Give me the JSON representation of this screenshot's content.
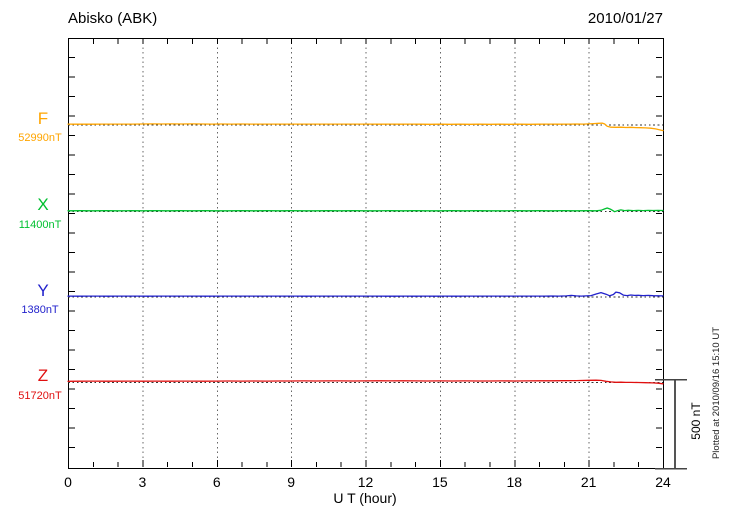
{
  "header": {
    "title": "Abisko (ABK)",
    "date": "2010/01/27"
  },
  "chart_data": {
    "type": "line",
    "title": "Abisko (ABK)",
    "date_label": "2010/01/27",
    "xlabel": "U T (hour)",
    "x_range": [
      0,
      24
    ],
    "x_major_ticks": [
      0,
      3,
      6,
      9,
      12,
      15,
      18,
      21,
      24
    ],
    "x_minor_step_hours": 1,
    "grid": "dotted vertical gridlines every 3 hours; dotted horizontal baseline for each channel",
    "legend_position": "left margin channel labels",
    "scale_bar": {
      "label": "500 nT",
      "value_nT": 500
    },
    "watermark": "Plotted at 2010/09/16 15:10 UT",
    "units_note": "series points are [hour UT, offset in nT from channel baseline]",
    "series": [
      {
        "name": "F",
        "baseline_label": "52990nT",
        "color": "#FFA500",
        "points": [
          [
            0,
            2
          ],
          [
            0.3,
            1.5
          ],
          [
            0.6,
            2
          ],
          [
            1,
            1.5
          ],
          [
            1.4,
            2
          ],
          [
            1.8,
            2.5
          ],
          [
            2.2,
            2
          ],
          [
            2.6,
            2.5
          ],
          [
            3,
            3
          ],
          [
            3.4,
            3.5
          ],
          [
            3.8,
            3
          ],
          [
            4.2,
            3.5
          ],
          [
            4.6,
            3
          ],
          [
            5,
            3.5
          ],
          [
            5.4,
            3
          ],
          [
            5.8,
            2.5
          ],
          [
            6.2,
            3
          ],
          [
            6.6,
            2.5
          ],
          [
            7,
            3
          ],
          [
            7.4,
            2.5
          ],
          [
            7.8,
            2
          ],
          [
            8.2,
            2.5
          ],
          [
            8.6,
            2
          ],
          [
            9,
            2.5
          ],
          [
            9.4,
            2
          ],
          [
            9.8,
            2.5
          ],
          [
            10.2,
            2
          ],
          [
            10.6,
            2.5
          ],
          [
            11,
            2
          ],
          [
            11.4,
            2.5
          ],
          [
            11.8,
            2
          ],
          [
            12.2,
            2
          ],
          [
            12.6,
            1.5
          ],
          [
            13,
            2
          ],
          [
            13.4,
            1.5
          ],
          [
            13.8,
            2
          ],
          [
            14.2,
            1.5
          ],
          [
            14.6,
            1
          ],
          [
            15,
            1.5
          ],
          [
            15.4,
            1
          ],
          [
            15.8,
            1.5
          ],
          [
            16.2,
            1
          ],
          [
            16.6,
            1.5
          ],
          [
            17,
            1
          ],
          [
            17.4,
            1.5
          ],
          [
            17.8,
            1
          ],
          [
            18.2,
            1.5
          ],
          [
            18.6,
            1
          ],
          [
            19,
            1.5
          ],
          [
            19.4,
            2
          ],
          [
            19.8,
            1.5
          ],
          [
            20.2,
            2
          ],
          [
            20.5,
            3
          ],
          [
            20.8,
            2.5
          ],
          [
            21,
            3.5
          ],
          [
            21.2,
            5
          ],
          [
            21.4,
            7
          ],
          [
            21.55,
            8
          ],
          [
            21.65,
            3
          ],
          [
            21.75,
            -10
          ],
          [
            21.9,
            -15
          ],
          [
            22.1,
            -16
          ],
          [
            22.3,
            -15
          ],
          [
            22.5,
            -17
          ],
          [
            22.7,
            -16
          ],
          [
            22.9,
            -17.5
          ],
          [
            23.1,
            -18
          ],
          [
            23.3,
            -19
          ],
          [
            23.5,
            -21
          ],
          [
            23.7,
            -25
          ],
          [
            23.85,
            -29
          ],
          [
            24,
            -34
          ]
        ]
      },
      {
        "name": "X",
        "baseline_label": "11400nT",
        "color": "#00C030",
        "points": [
          [
            0,
            1
          ],
          [
            0.5,
            1.5
          ],
          [
            1,
            1
          ],
          [
            1.5,
            1.5
          ],
          [
            2,
            1
          ],
          [
            2.5,
            1.5
          ],
          [
            3,
            1
          ],
          [
            3.5,
            1.5
          ],
          [
            4,
            1
          ],
          [
            4.5,
            1.5
          ],
          [
            5,
            1
          ],
          [
            5.5,
            1.5
          ],
          [
            6,
            1
          ],
          [
            6.5,
            1
          ],
          [
            7,
            1.5
          ],
          [
            7.5,
            1
          ],
          [
            8,
            1.5
          ],
          [
            8.5,
            1
          ],
          [
            9,
            1.5
          ],
          [
            9.5,
            1
          ],
          [
            10,
            1
          ],
          [
            10.5,
            1.5
          ],
          [
            11,
            1
          ],
          [
            11.5,
            1.5
          ],
          [
            12,
            1
          ],
          [
            12.5,
            1
          ],
          [
            13,
            1.5
          ],
          [
            13.5,
            1
          ],
          [
            14,
            1.5
          ],
          [
            14.5,
            1
          ],
          [
            15,
            1
          ],
          [
            15.5,
            1.5
          ],
          [
            16,
            1
          ],
          [
            16.5,
            1.5
          ],
          [
            17,
            1
          ],
          [
            17.5,
            1
          ],
          [
            18,
            1.5
          ],
          [
            18.5,
            1
          ],
          [
            19,
            1.5
          ],
          [
            19.5,
            1
          ],
          [
            20,
            1.5
          ],
          [
            20.5,
            1
          ],
          [
            21,
            1.5
          ],
          [
            21.3,
            1
          ],
          [
            21.5,
            4
          ],
          [
            21.65,
            12
          ],
          [
            21.75,
            17
          ],
          [
            21.9,
            9
          ],
          [
            22.05,
            -4
          ],
          [
            22.15,
            1
          ],
          [
            22.3,
            6
          ],
          [
            22.45,
            2
          ],
          [
            22.6,
            4
          ],
          [
            22.8,
            2.5
          ],
          [
            23,
            3.5
          ],
          [
            23.2,
            2.5
          ],
          [
            23.4,
            3.5
          ],
          [
            23.6,
            3
          ],
          [
            23.8,
            3.5
          ],
          [
            24,
            3
          ]
        ]
      },
      {
        "name": "Y",
        "baseline_label": "1380nT",
        "color": "#2222CC",
        "points": [
          [
            0,
            2
          ],
          [
            0.4,
            1.5
          ],
          [
            0.8,
            2.5
          ],
          [
            1.2,
            2
          ],
          [
            1.6,
            1.5
          ],
          [
            2,
            2
          ],
          [
            2.4,
            2.5
          ],
          [
            2.8,
            2
          ],
          [
            3.2,
            1.5
          ],
          [
            3.6,
            2
          ],
          [
            4,
            2.5
          ],
          [
            4.4,
            2
          ],
          [
            4.8,
            2.5
          ],
          [
            5.2,
            2
          ],
          [
            5.6,
            1.5
          ],
          [
            6,
            2
          ],
          [
            6.4,
            2.5
          ],
          [
            6.8,
            2
          ],
          [
            7.2,
            2.5
          ],
          [
            7.6,
            2
          ],
          [
            8,
            2.5
          ],
          [
            8.4,
            2
          ],
          [
            8.8,
            2.5
          ],
          [
            9.2,
            2
          ],
          [
            9.6,
            1.5
          ],
          [
            10,
            2
          ],
          [
            10.4,
            2.5
          ],
          [
            10.8,
            2
          ],
          [
            11.2,
            2.5
          ],
          [
            11.6,
            2
          ],
          [
            12,
            2.5
          ],
          [
            12.4,
            2
          ],
          [
            12.8,
            1.5
          ],
          [
            13.2,
            1.5
          ],
          [
            13.6,
            2
          ],
          [
            14,
            1.5
          ],
          [
            14.4,
            2
          ],
          [
            14.8,
            1.5
          ],
          [
            15.2,
            2
          ],
          [
            15.6,
            1.5
          ],
          [
            16,
            2
          ],
          [
            16.4,
            2.5
          ],
          [
            16.8,
            2
          ],
          [
            17.2,
            2.5
          ],
          [
            17.6,
            2
          ],
          [
            18,
            2.5
          ],
          [
            18.4,
            2
          ],
          [
            18.8,
            2.5
          ],
          [
            19.2,
            2.5
          ],
          [
            19.5,
            3
          ],
          [
            19.8,
            2.5
          ],
          [
            20.1,
            3.5
          ],
          [
            20.3,
            6
          ],
          [
            20.5,
            3.5
          ],
          [
            20.7,
            2.5
          ],
          [
            20.9,
            3.5
          ],
          [
            21.1,
            5
          ],
          [
            21.3,
            14
          ],
          [
            21.5,
            22
          ],
          [
            21.7,
            13
          ],
          [
            21.85,
            4
          ],
          [
            22,
            11
          ],
          [
            22.1,
            25
          ],
          [
            22.25,
            21
          ],
          [
            22.4,
            8
          ],
          [
            22.55,
            5
          ],
          [
            22.7,
            8.5
          ],
          [
            22.85,
            6
          ],
          [
            23,
            7
          ],
          [
            23.2,
            5
          ],
          [
            23.4,
            6
          ],
          [
            23.6,
            4.5
          ],
          [
            23.8,
            4
          ],
          [
            24,
            3.5
          ]
        ]
      },
      {
        "name": "Z",
        "baseline_label": "51720nT",
        "color": "#E01010",
        "points": [
          [
            0,
            4
          ],
          [
            0.5,
            4.5
          ],
          [
            1,
            5
          ],
          [
            1.5,
            4.5
          ],
          [
            2,
            4.5
          ],
          [
            2.5,
            5
          ],
          [
            3,
            4.5
          ],
          [
            3.5,
            5
          ],
          [
            4,
            4.5
          ],
          [
            4.5,
            5
          ],
          [
            5,
            5
          ],
          [
            5.5,
            4.5
          ],
          [
            6,
            5
          ],
          [
            6.5,
            5.5
          ],
          [
            7,
            5
          ],
          [
            7.5,
            5.5
          ],
          [
            8,
            5
          ],
          [
            8.5,
            5.5
          ],
          [
            9,
            5.5
          ],
          [
            9.5,
            6
          ],
          [
            10,
            5.5
          ],
          [
            10.5,
            6
          ],
          [
            11,
            6
          ],
          [
            11.5,
            5.5
          ],
          [
            12,
            6
          ],
          [
            12.5,
            6.5
          ],
          [
            13,
            6
          ],
          [
            13.5,
            6.5
          ],
          [
            14,
            6
          ],
          [
            14.5,
            5.5
          ],
          [
            15,
            6
          ],
          [
            15.5,
            5.5
          ],
          [
            16,
            6
          ],
          [
            16.5,
            5.5
          ],
          [
            17,
            5.5
          ],
          [
            17.5,
            6
          ],
          [
            18,
            5.5
          ],
          [
            18.5,
            6
          ],
          [
            19,
            6.5
          ],
          [
            19.5,
            7
          ],
          [
            20,
            7.5
          ],
          [
            20.5,
            8
          ],
          [
            21,
            9.5
          ],
          [
            21.3,
            10
          ],
          [
            21.5,
            9
          ],
          [
            21.7,
            4
          ],
          [
            21.9,
            0.5
          ],
          [
            22.1,
            -1.5
          ],
          [
            22.3,
            -1
          ],
          [
            22.5,
            -2.5
          ],
          [
            22.7,
            -2
          ],
          [
            23,
            -3
          ],
          [
            23.3,
            -4
          ],
          [
            23.6,
            -5
          ],
          [
            23.8,
            -7
          ],
          [
            24,
            -10
          ]
        ]
      }
    ]
  }
}
